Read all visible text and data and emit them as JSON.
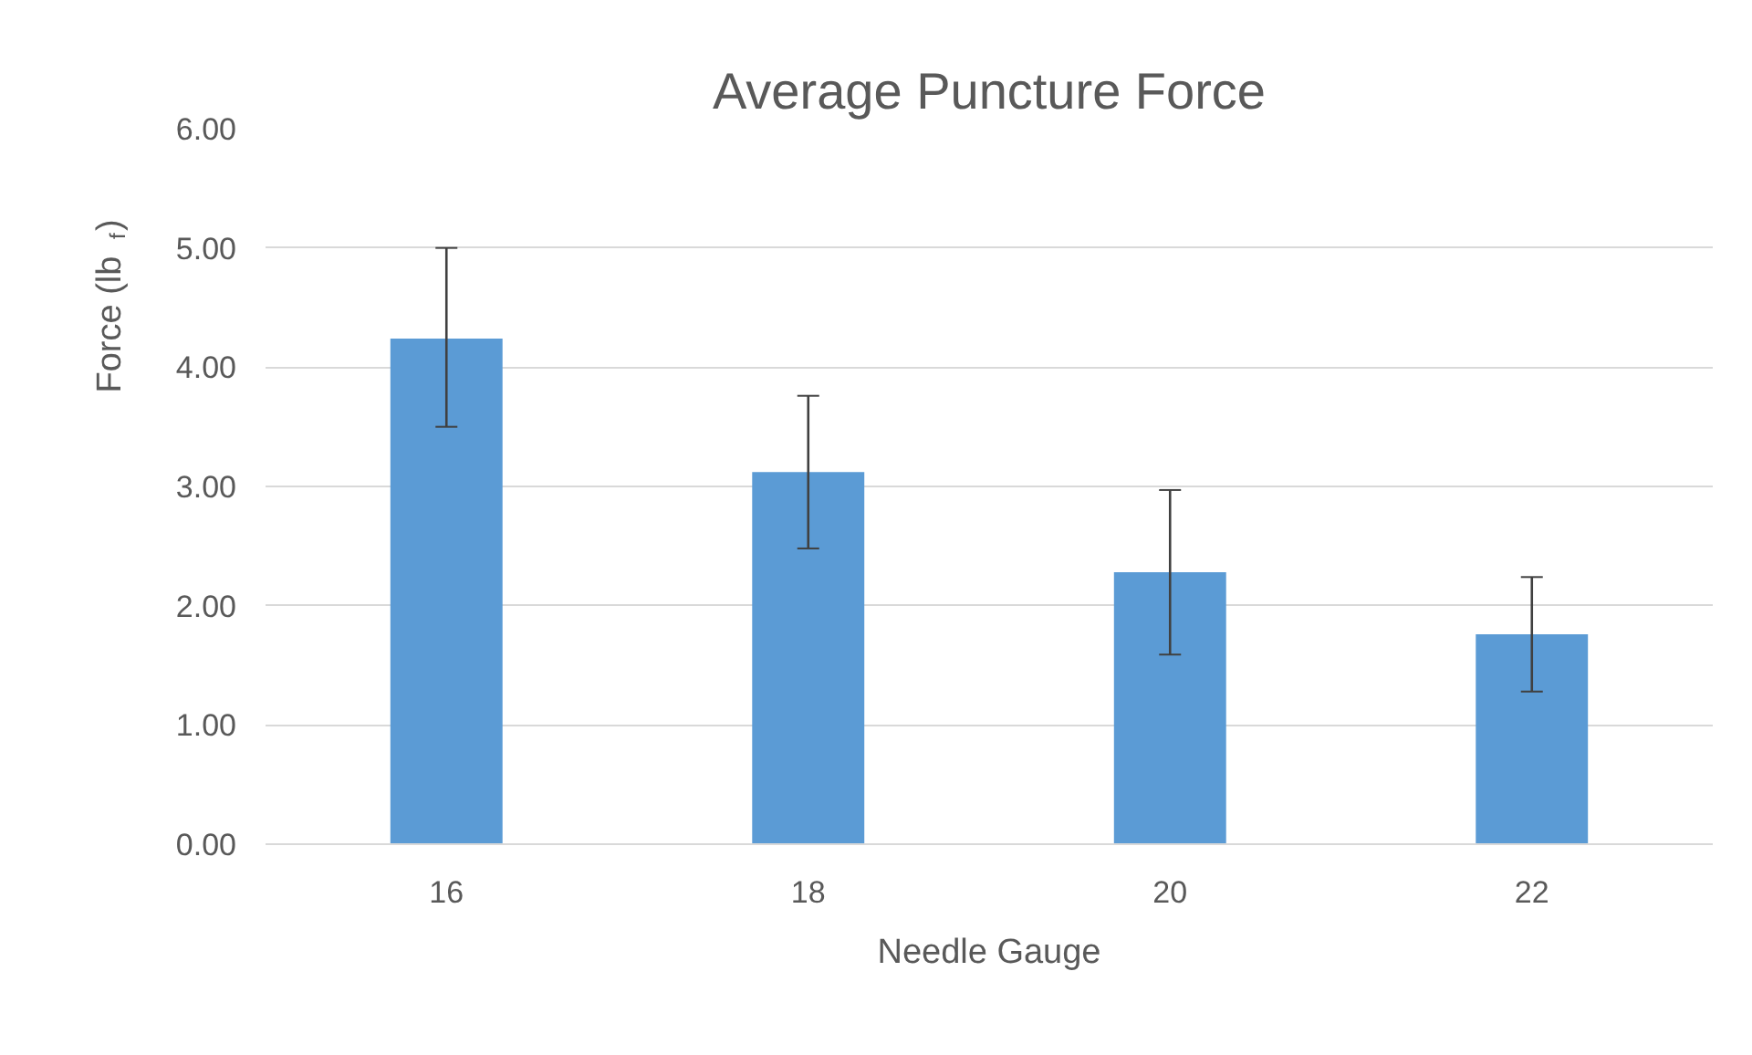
{
  "chart_data": {
    "type": "bar",
    "title": "Average Puncture Force",
    "xlabel": "Needle Gauge",
    "ylabel": "Force (lb$_{f}$)",
    "categories": [
      "16",
      "18",
      "20",
      "22"
    ],
    "values": [
      4.24,
      3.12,
      2.28,
      1.76
    ],
    "errors": [
      [
        3.5,
        5.0
      ],
      [
        2.48,
        3.76
      ],
      [
        1.59,
        2.97
      ],
      [
        1.28,
        2.24
      ]
    ],
    "color": "#5b9bd5",
    "ylim": [
      0,
      6
    ],
    "yticks": [
      {
        "value": 0,
        "label": "0.00"
      },
      {
        "value": 1,
        "label": "1.00"
      },
      {
        "value": 2,
        "label": "2.00"
      },
      {
        "value": 3,
        "label": "3.00"
      },
      {
        "value": 4,
        "label": "4.00"
      },
      {
        "value": 5,
        "label": "5.00"
      },
      {
        "value": 6,
        "label": "6.00"
      }
    ],
    "grid": "y"
  }
}
